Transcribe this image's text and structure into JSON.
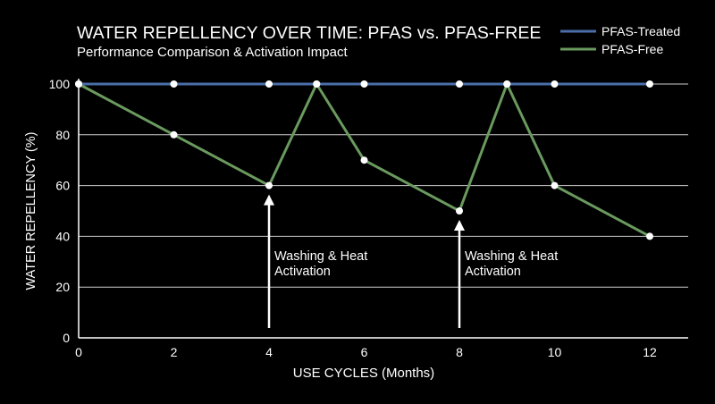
{
  "chart_data": {
    "type": "line",
    "title": "WATER REPELLENCY OVER TIME: PFAS vs. PFAS-FREE",
    "subtitle": "Performance Comparison & Activation Impact",
    "xlabel": "USE CYCLES (Months)",
    "ylabel": "WATER REPELLENCY (%)",
    "xlim": [
      0,
      12.8
    ],
    "ylim": [
      0,
      100
    ],
    "xticks": [
      0,
      2,
      4,
      6,
      8,
      10,
      12
    ],
    "yticks": [
      0,
      20,
      40,
      60,
      80,
      100
    ],
    "grid": "horizontal",
    "legend_position": "top-right",
    "series": [
      {
        "name": "PFAS-Treated",
        "color": "#4a6ea9",
        "points": [
          {
            "x": 0,
            "y": 100
          },
          {
            "x": 2,
            "y": 100
          },
          {
            "x": 4,
            "y": 100
          },
          {
            "x": 5,
            "y": 100
          },
          {
            "x": 6,
            "y": 100
          },
          {
            "x": 8,
            "y": 100
          },
          {
            "x": 9,
            "y": 100
          },
          {
            "x": 10,
            "y": 100
          },
          {
            "x": 12,
            "y": 100
          }
        ]
      },
      {
        "name": "PFAS-Free",
        "color": "#6a9a5e",
        "points": [
          {
            "x": 0,
            "y": 100
          },
          {
            "x": 2,
            "y": 80
          },
          {
            "x": 4,
            "y": 60
          },
          {
            "x": 5,
            "y": 100
          },
          {
            "x": 6,
            "y": 70
          },
          {
            "x": 8,
            "y": 50
          },
          {
            "x": 9,
            "y": 100
          },
          {
            "x": 10,
            "y": 60
          },
          {
            "x": 12,
            "y": 40
          }
        ]
      }
    ],
    "annotations": [
      {
        "x": 4,
        "y": 60,
        "lines": [
          "Washing & Heat",
          "Activation"
        ]
      },
      {
        "x": 8,
        "y": 50,
        "lines": [
          "Washing & Heat",
          "Activation"
        ]
      }
    ],
    "colors": {
      "background": "#000000",
      "text": "#ffffff",
      "grid": "#cfcfcf",
      "marker": "#ffffff"
    }
  }
}
